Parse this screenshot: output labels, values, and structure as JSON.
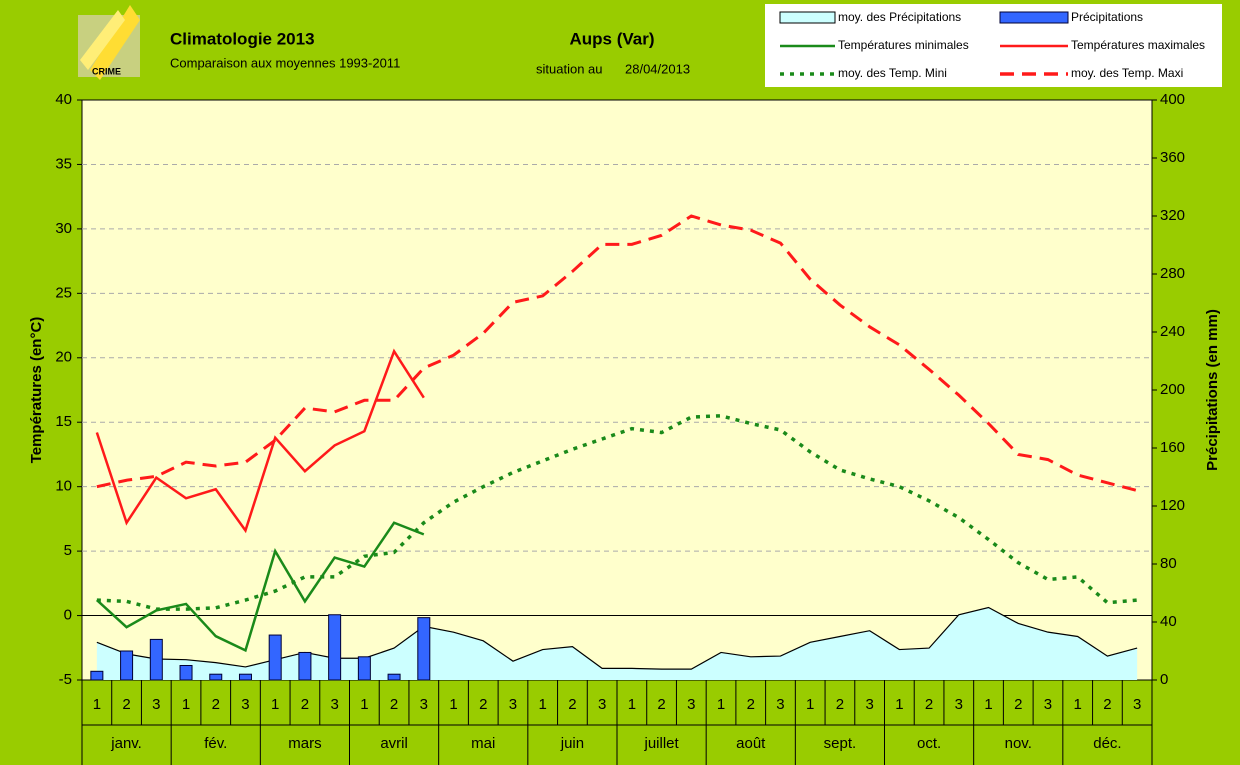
{
  "chart_data": {
    "type": "combo",
    "title": "Climatologie 2013",
    "subtitle": "Comparaison aux moyennes 1993-2011",
    "station": "Aups (Var)",
    "situation_label": "situation au",
    "situation_date": "28/04/2013",
    "ylabel": "Températures (en°C)",
    "y2label": "Précipitations (en mm)",
    "categories": [
      "1",
      "2",
      "3",
      "1",
      "2",
      "3",
      "1",
      "2",
      "3",
      "1",
      "2",
      "3",
      "1",
      "2",
      "3",
      "1",
      "2",
      "3",
      "1",
      "2",
      "3",
      "1",
      "2",
      "3",
      "1",
      "2",
      "3",
      "1",
      "2",
      "3",
      "1",
      "2",
      "3",
      "1",
      "2",
      "3"
    ],
    "groups": [
      "janv.",
      "fév.",
      "mars",
      "avril",
      "mai",
      "juin",
      "juillet",
      "août",
      "sept.",
      "oct.",
      "nov.",
      "déc."
    ],
    "ylim": [
      -5,
      40
    ],
    "yticks": [
      -5,
      0,
      5,
      10,
      15,
      20,
      25,
      30,
      35,
      40
    ],
    "y2lim": [
      0,
      400
    ],
    "y2ticks": [
      0,
      40,
      80,
      120,
      160,
      200,
      240,
      280,
      320,
      360,
      400
    ],
    "grid": true,
    "series": [
      {
        "name": "moy. des Précipitations",
        "style": "area",
        "axis": "y2",
        "color": "#ccffff",
        "values": [
          26,
          18,
          14.5,
          14,
          12,
          9,
          14,
          19,
          15,
          15,
          22,
          37,
          33,
          27,
          13,
          21,
          23,
          8,
          8,
          7.5,
          7.5,
          19,
          16,
          16.5,
          26,
          30,
          34,
          21,
          22,
          45,
          50,
          39,
          33,
          30,
          16.5,
          22
        ]
      },
      {
        "name": "Précipitations",
        "style": "bar",
        "axis": "y2",
        "color": "#3366ff",
        "values": [
          6,
          20,
          28,
          10,
          4,
          4,
          31,
          19,
          45,
          16,
          4,
          43,
          null,
          null,
          null,
          null,
          null,
          null,
          null,
          null,
          null,
          null,
          null,
          null,
          null,
          null,
          null,
          null,
          null,
          null,
          null,
          null,
          null,
          null,
          null,
          null
        ]
      },
      {
        "name": "Températures minimales",
        "style": "line",
        "color": "#1a8a1a",
        "values": [
          1.2,
          -0.9,
          0.4,
          0.9,
          -1.6,
          -2.7,
          5.0,
          1.1,
          4.5,
          3.8,
          7.2,
          6.3,
          null,
          null,
          null,
          null,
          null,
          null,
          null,
          null,
          null,
          null,
          null,
          null,
          null,
          null,
          null,
          null,
          null,
          null,
          null,
          null,
          null,
          null,
          null,
          null
        ]
      },
      {
        "name": "Températures maximales",
        "style": "line",
        "color": "#ff1a1a",
        "values": [
          14.2,
          7.2,
          10.7,
          9.1,
          9.8,
          6.6,
          13.8,
          11.2,
          13.2,
          14.3,
          20.5,
          16.9,
          null,
          null,
          null,
          null,
          null,
          null,
          null,
          null,
          null,
          null,
          null,
          null,
          null,
          null,
          null,
          null,
          null,
          null,
          null,
          null,
          null,
          null,
          null,
          null
        ]
      },
      {
        "name": "moy. des Temp. Mini",
        "style": "dotted",
        "color": "#1a8a1a",
        "values": [
          1.2,
          1.1,
          0.5,
          0.5,
          0.6,
          1.2,
          1.9,
          3.0,
          3.0,
          4.6,
          4.9,
          7.2,
          8.8,
          10.0,
          11.1,
          12.0,
          12.9,
          13.7,
          14.5,
          14.2,
          15.4,
          15.5,
          14.9,
          14.4,
          12.7,
          11.3,
          10.6,
          10.0,
          8.9,
          7.6,
          5.9,
          4.1,
          2.8,
          3.0,
          1.0,
          1.2
        ]
      },
      {
        "name": "moy. des Temp. Maxi",
        "style": "dashed",
        "color": "#ff1a1a",
        "values": [
          10.0,
          10.5,
          10.8,
          11.9,
          11.6,
          11.9,
          13.6,
          16.1,
          15.8,
          16.7,
          16.7,
          19.2,
          20.2,
          21.9,
          24.3,
          24.8,
          26.7,
          28.8,
          28.8,
          29.5,
          31.0,
          30.3,
          29.9,
          28.9,
          26.1,
          24.1,
          22.4,
          21.0,
          19.1,
          17.1,
          14.9,
          12.5,
          12.1,
          10.9,
          10.3,
          9.7
        ]
      }
    ]
  }
}
